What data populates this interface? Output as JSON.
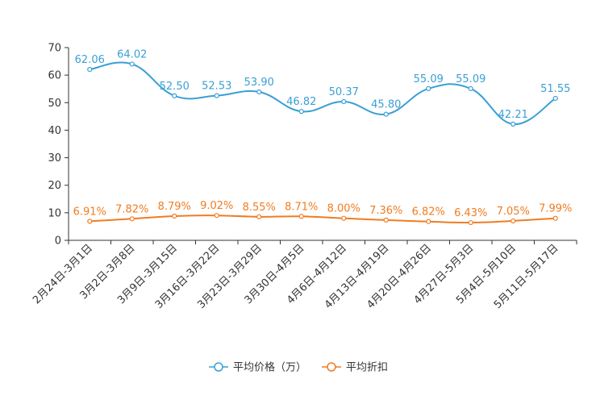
{
  "chart_data": {
    "type": "line",
    "title": "",
    "xlabel": "",
    "ylabel": "",
    "ylim": [
      0,
      70
    ],
    "yticks": [
      0,
      10,
      20,
      30,
      40,
      50,
      60,
      70
    ],
    "grid": false,
    "legend_position": "bottom-center",
    "categories": [
      "2月24日-3月1日",
      "3月2日-3月8日",
      "3月9日-3月15日",
      "3月16日-3月22日",
      "3月23日-3月29日",
      "3月30日-4月5日",
      "4月6日-4月12日",
      "4月13日-4月19日",
      "4月20日-4月26日",
      "4月27日-5月3日",
      "5月4日-5月10日",
      "5月11日-5月17日"
    ],
    "series": [
      {
        "name": "平均价格（万）",
        "color": "#3a9fd5",
        "values": [
          62.06,
          64.02,
          52.5,
          52.53,
          53.9,
          46.82,
          50.37,
          45.8,
          55.09,
          55.09,
          42.21,
          51.55
        ],
        "labels": [
          "62.06",
          "64.02",
          "52.50",
          "52.53",
          "53.90",
          "46.82",
          "50.37",
          "45.80",
          "55.09",
          "55.09",
          "42.21",
          "51.55"
        ]
      },
      {
        "name": "平均折扣",
        "color": "#f07c21",
        "values": [
          6.91,
          7.82,
          8.79,
          9.02,
          8.55,
          8.71,
          8.0,
          7.36,
          6.82,
          6.43,
          7.05,
          7.99
        ],
        "labels": [
          "6.91%",
          "7.82%",
          "8.79%",
          "9.02%",
          "8.55%",
          "8.71%",
          "8.00%",
          "7.36%",
          "6.82%",
          "6.43%",
          "7.05%",
          "7.99%"
        ]
      }
    ]
  }
}
